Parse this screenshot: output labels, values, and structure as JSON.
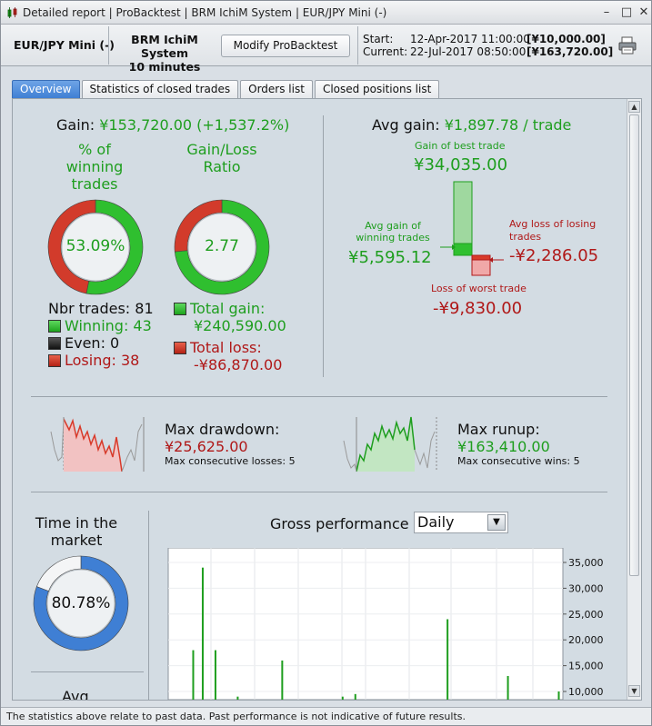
{
  "window": {
    "tabs": [
      "Detailed report",
      "ProBacktest",
      "BRM IchiM System",
      "EUR/JPY Mini (-)"
    ],
    "separator": " | "
  },
  "header": {
    "symbol": "EUR/JPY Mini (-)",
    "system_name": "BRM IchiM System",
    "timeframe": "10 minutes",
    "modify_button": "Modify ProBacktest",
    "start_label": "Start:",
    "start_date": "12-Apr-2017 11:00:00",
    "start_amount": "[¥10,000.00]",
    "current_label": "Current:",
    "current_date": "22-Jul-2017 08:50:00",
    "current_amount": "[¥163,720.00]"
  },
  "tabs": [
    {
      "label": "Overview",
      "active": true
    },
    {
      "label": "Statistics of closed trades",
      "active": false
    },
    {
      "label": "Orders list",
      "active": false
    },
    {
      "label": "Closed positions list",
      "active": false
    }
  ],
  "overview": {
    "gain_label": "Gain:",
    "gain_value": "¥153,720.00 (+1,537.2%)",
    "winning_title": "% of winning trades",
    "winning_pct": "53.09%",
    "winning_fraction": 0.5309,
    "ratio_title": "Gain/Loss Ratio",
    "ratio_value": "2.77",
    "ratio_fraction": 0.7347,
    "nbr_trades": "Nbr trades: 81",
    "winning": "Winning: 43",
    "even": "Even: 0",
    "losing": "Losing: 38",
    "total_gain_label": "Total gain:",
    "total_gain": "¥240,590.00",
    "total_loss_label": "Total loss:",
    "total_loss": "-¥86,870.00",
    "avg_gain_label": "Avg gain:",
    "avg_gain_value": "¥1,897.78 / trade",
    "best_trade_label": "Gain of best trade",
    "best_trade": "¥34,035.00",
    "avg_win_label": "Avg gain of winning trades",
    "avg_win": "¥5,595.12",
    "avg_loss_label": "Avg loss of losing trades",
    "avg_loss": "-¥2,286.05",
    "worst_trade_label": "Loss of worst trade",
    "worst_trade": "-¥9,830.00",
    "max_drawdown_label": "Max drawdown:",
    "max_drawdown": "¥25,625.00",
    "max_consec_losses": "Max consecutive losses: 5",
    "max_runup_label": "Max runup:",
    "max_runup": "¥163,410.00",
    "max_consec_wins": "Max consecutive wins: 5",
    "time_in_market_title": "Time in the market",
    "time_in_market": "80.78%",
    "time_in_market_fraction": 0.8078,
    "avg_label": "Avg",
    "gross_perf_label": "Gross performance",
    "gross_perf_period": "Daily"
  },
  "chart_data": {
    "type": "bar",
    "y_ticks": [
      "35,000",
      "30,000",
      "25,000",
      "20,000",
      "15,000",
      "10,000"
    ],
    "ylim": [
      0,
      37000
    ],
    "values": [
      0,
      0,
      0,
      0,
      0,
      0,
      0,
      18000,
      0,
      0,
      34000,
      0,
      0,
      0,
      18000,
      0,
      0,
      0,
      0,
      0,
      0,
      9000,
      0,
      0,
      0,
      0,
      0,
      0,
      0,
      0,
      0,
      0,
      0,
      0,
      0,
      16000,
      0,
      0,
      0,
      0,
      0,
      0,
      0,
      0,
      0,
      0,
      0,
      0,
      0,
      0,
      0,
      0,
      0,
      0,
      9000,
      0,
      0,
      0,
      9500,
      0,
      0,
      0,
      0,
      0,
      0,
      0,
      0,
      0,
      0,
      0,
      0,
      0,
      0,
      0,
      0,
      0,
      0,
      0,
      0,
      0,
      0,
      0,
      0,
      0,
      0,
      0,
      0,
      24000,
      0,
      0,
      0,
      0,
      0,
      0,
      0,
      0,
      0,
      0,
      0,
      0,
      0,
      0,
      0,
      0,
      0,
      0,
      13000,
      0,
      0,
      0,
      0,
      0,
      0,
      0,
      0,
      0,
      0,
      0,
      0,
      0,
      0,
      0,
      10000
    ]
  },
  "footer": {
    "disclaimer": "The statistics above relate to past data. Past performance is not indicative of future results."
  },
  "colors": {
    "green": "#1e9e1e",
    "red": "#b01818",
    "accent": "#3f7fd4"
  }
}
